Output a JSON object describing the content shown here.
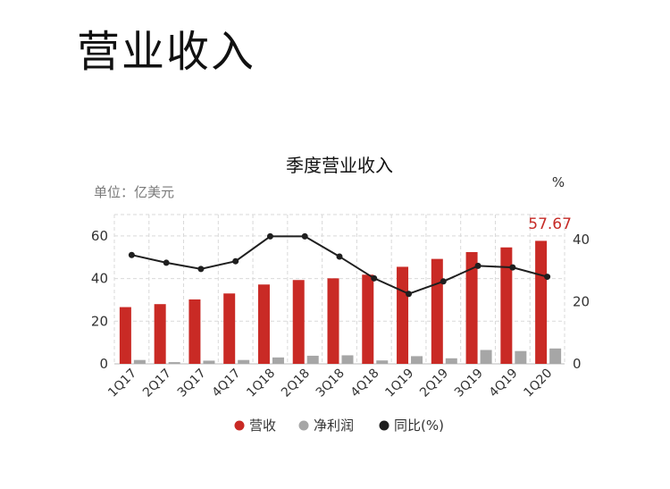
{
  "page": {
    "title": "营业收入"
  },
  "colors": {
    "revenue": "#c92a25",
    "net_profit": "#a6a6a6",
    "yoy": "#1f1f1f",
    "highlight": "#c62b27",
    "grid": "#d9d9d9"
  },
  "chart_data": {
    "type": "bar",
    "title": "季度营业收入",
    "unit_label": "单位：亿美元",
    "y2_label": "%",
    "categories": [
      "1Q17",
      "2Q17",
      "3Q17",
      "4Q17",
      "1Q18",
      "2Q18",
      "3Q18",
      "4Q18",
      "1Q19",
      "2Q19",
      "3Q19",
      "4Q19",
      "1Q20"
    ],
    "series": [
      {
        "name": "营收",
        "kind": "bar",
        "axis": "left",
        "values": [
          26.6,
          28.0,
          30.2,
          33.0,
          37.2,
          39.3,
          40.1,
          41.8,
          45.5,
          49.2,
          52.4,
          54.6,
          57.67
        ]
      },
      {
        "name": "净利润",
        "kind": "bar",
        "axis": "left",
        "values": [
          1.8,
          0.8,
          1.5,
          1.8,
          3.0,
          3.8,
          4.0,
          1.6,
          3.6,
          2.6,
          6.5,
          6.0,
          7.2
        ]
      },
      {
        "name": "同比(%)",
        "kind": "line",
        "axis": "right",
        "values": [
          35,
          32.5,
          30.5,
          33,
          41,
          41,
          34.5,
          27.5,
          22.5,
          26.5,
          31.5,
          31,
          28
        ]
      }
    ],
    "ylim": [
      0,
      70
    ],
    "y_ticks": [
      0,
      20,
      40,
      60
    ],
    "y2lim": [
      0,
      48
    ],
    "y2_ticks": [
      0,
      20,
      40
    ],
    "last_value_label": "57.67",
    "legend": [
      "营收",
      "净利润",
      "同比(%)"
    ],
    "legend_position": "bottom",
    "grid": true
  }
}
